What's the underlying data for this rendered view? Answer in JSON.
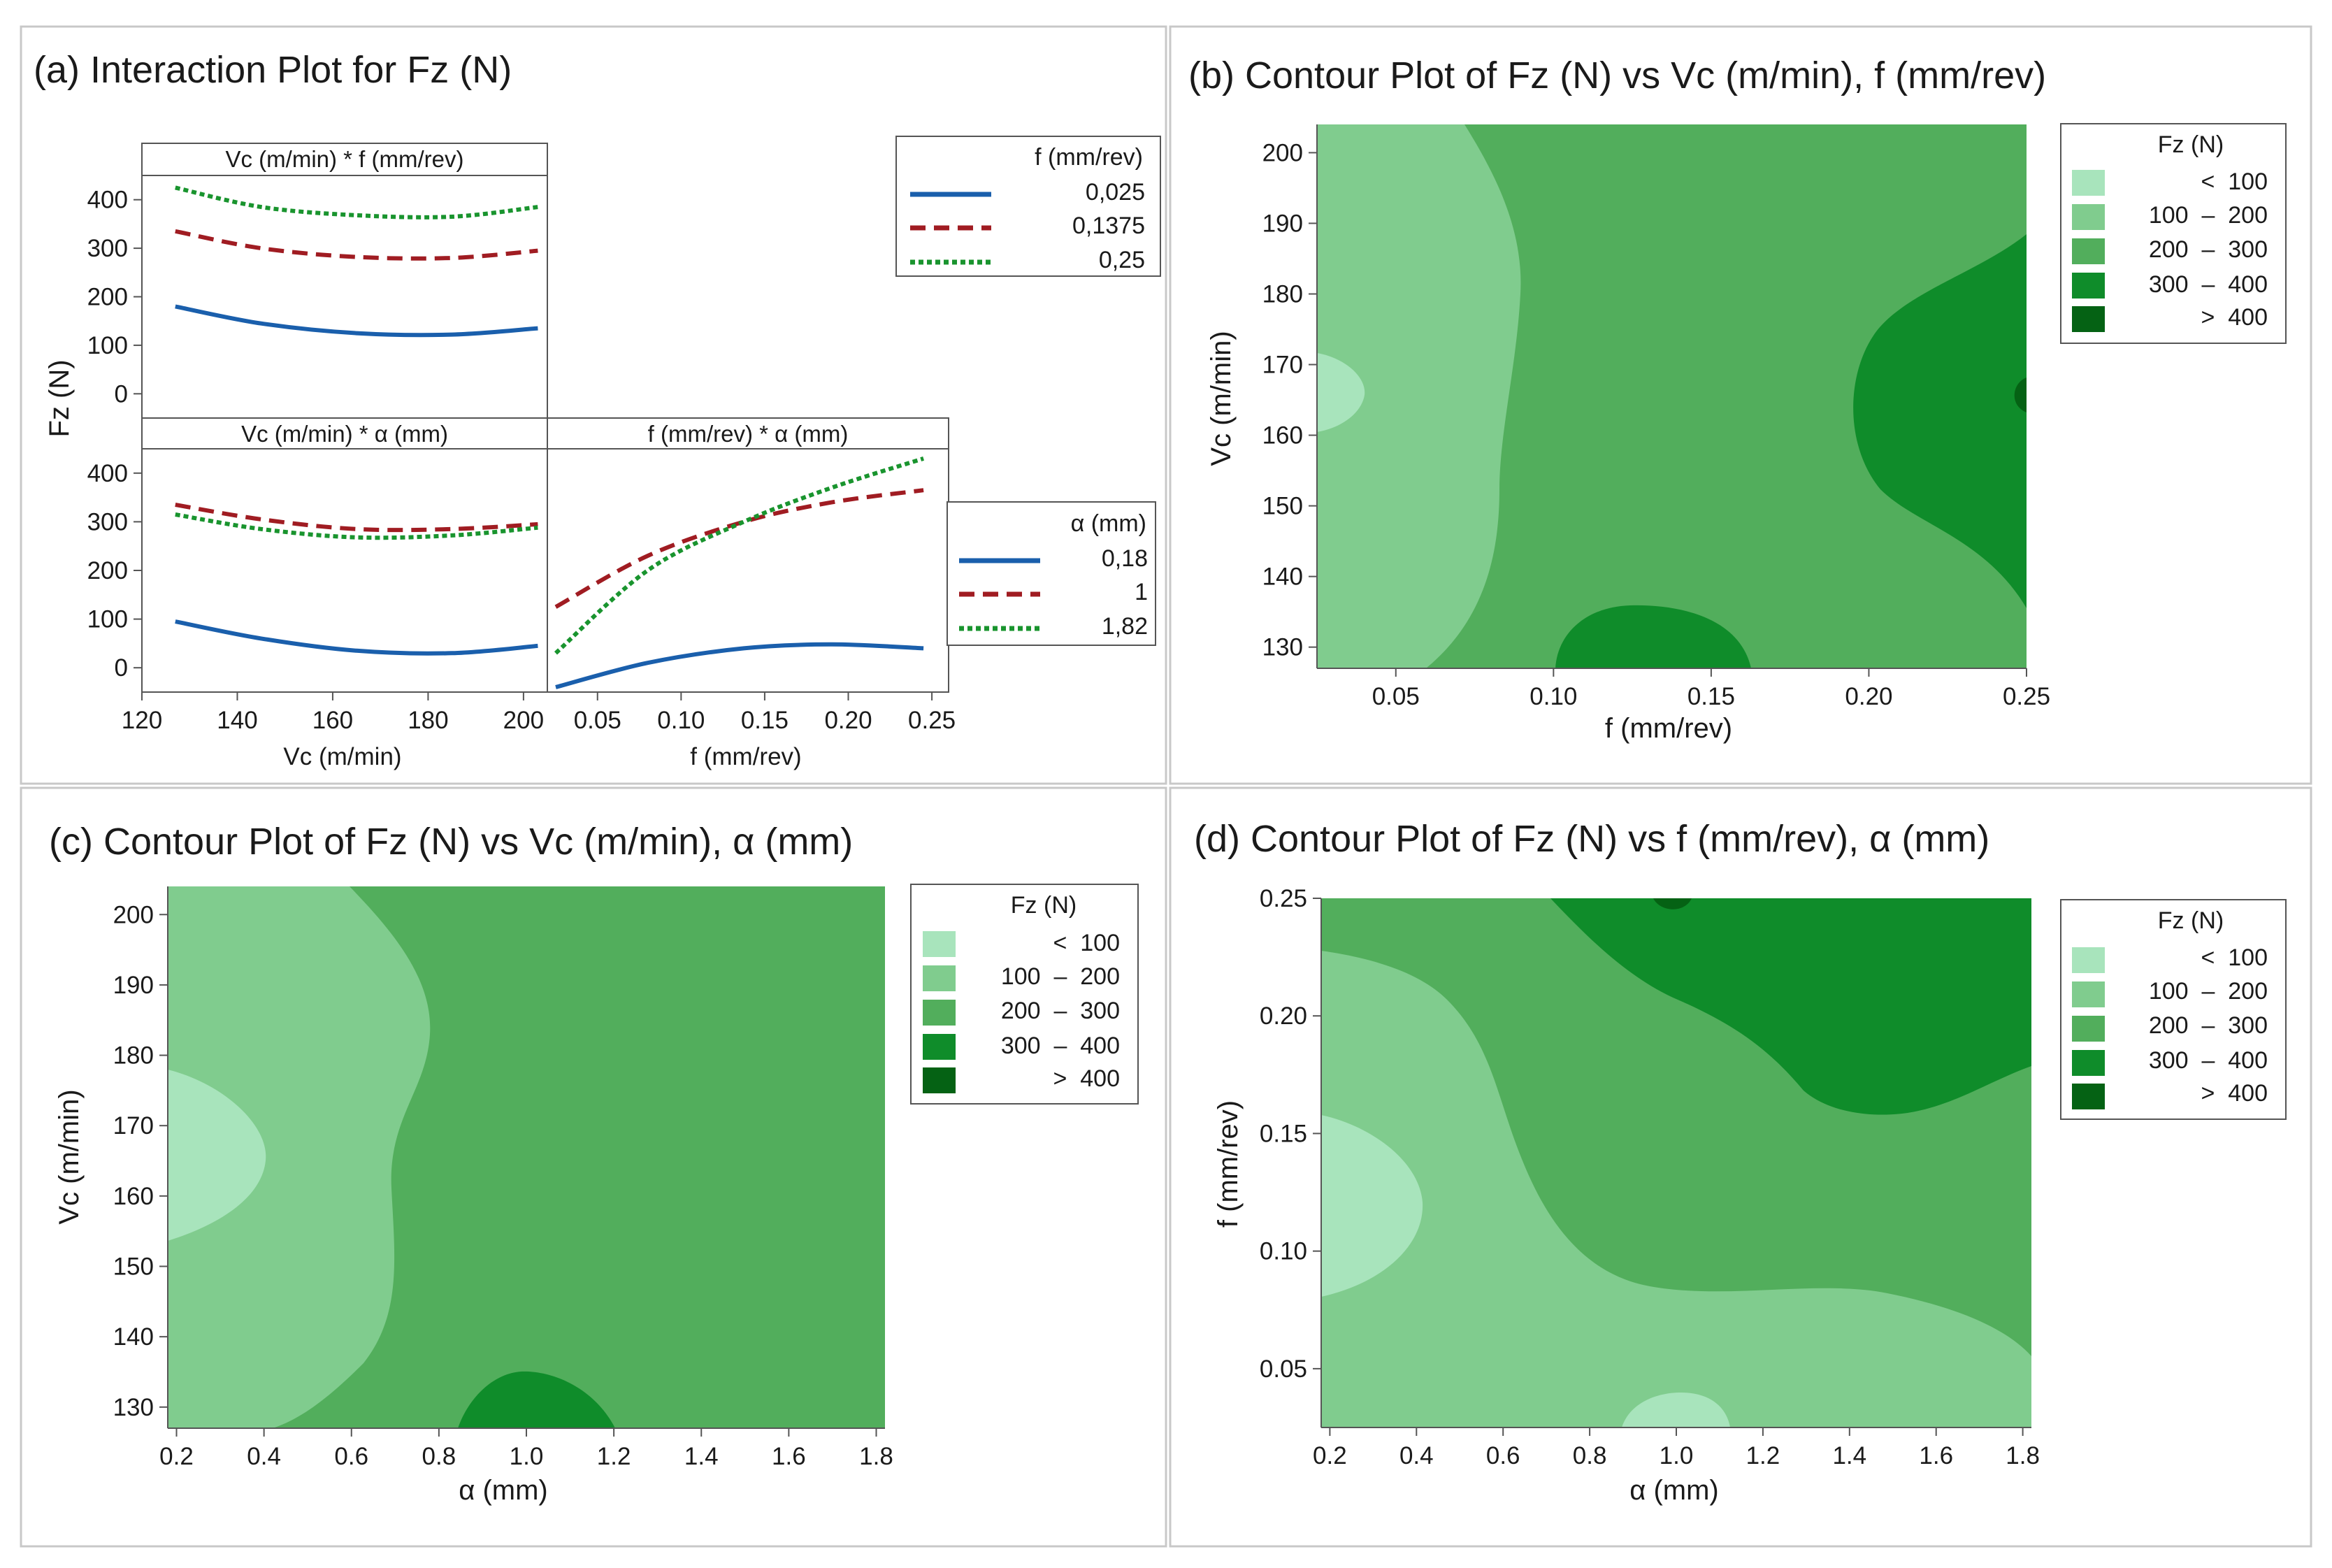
{
  "colors": {
    "band_lt100": "#a8e4bc",
    "band_100_200": "#80cc8e",
    "band_200_300": "#52ae5c",
    "band_300_400": "#0f8c2a",
    "band_gt400": "#056214",
    "f_0025": "#1a5fac",
    "f_01375": "#a01c22",
    "f_025": "#19942e"
  },
  "chart_data": [
    {
      "id": "a",
      "type": "line",
      "title": "(a) Interaction Plot for Fz (N)",
      "ylabel": "Fz (N)",
      "ylim": [
        -50,
        450
      ],
      "yticks": [
        0,
        100,
        200,
        300,
        400
      ],
      "panels": [
        {
          "strip": "Vc (m/min) * f (mm/rev)",
          "xlabel": "Vc (m/min)",
          "xlim": [
            120,
            205
          ],
          "xticks": [
            120,
            140,
            160,
            180,
            200
          ],
          "x": [
            127,
            145,
            165,
            185,
            203
          ],
          "legend_group": "f",
          "series": [
            {
              "name": "0,025",
              "values": [
                180,
                145,
                125,
                122,
                135
              ]
            },
            {
              "name": "0,1375",
              "values": [
                335,
                300,
                282,
                280,
                295
              ]
            },
            {
              "name": "0,25",
              "values": [
                425,
                385,
                368,
                365,
                385
              ]
            }
          ]
        },
        {
          "strip": "Vc (m/min) * α (mm)",
          "xlabel": "Vc (m/min)",
          "xlim": [
            120,
            205
          ],
          "xticks": [
            120,
            140,
            160,
            180,
            200
          ],
          "x": [
            127,
            145,
            165,
            185,
            203
          ],
          "legend_group": "alpha",
          "series": [
            {
              "name": "0,18",
              "values": [
                95,
                60,
                35,
                30,
                45
              ]
            },
            {
              "name": "1",
              "values": [
                335,
                305,
                285,
                285,
                295
              ]
            },
            {
              "name": "1,82",
              "values": [
                315,
                285,
                268,
                272,
                288
              ]
            }
          ]
        },
        {
          "strip": "f (mm/rev) * α (mm)",
          "xlabel": "f (mm/rev)",
          "xlim": [
            0.02,
            0.26
          ],
          "xticks": [
            0.05,
            0.1,
            0.15,
            0.2,
            0.25
          ],
          "xtick_labels": [
            "0.05",
            "0.10",
            "0.15",
            "0.20",
            "0.25"
          ],
          "x": [
            0.025,
            0.08,
            0.1375,
            0.19,
            0.245
          ],
          "legend_group": "alpha",
          "series": [
            {
              "name": "0,18",
              "values": [
                -40,
                10,
                40,
                48,
                40
              ]
            },
            {
              "name": "1",
              "values": [
                125,
                230,
                300,
                340,
                365
              ]
            },
            {
              "name": "1,82",
              "values": [
                30,
                200,
                300,
                370,
                430
              ]
            }
          ]
        }
      ],
      "legends": {
        "f": {
          "title": "f (mm/rev)",
          "items": [
            "0,025",
            "0,1375",
            "0,25"
          ]
        },
        "alpha": {
          "title": "α (mm)",
          "items": [
            "0,18",
            "1",
            "1,82"
          ]
        }
      }
    },
    {
      "id": "b",
      "type": "contour",
      "title": "(b) Contour Plot of Fz (N) vs Vc (m/min), f (mm/rev)",
      "xlabel": "f (mm/rev)",
      "ylabel": "Vc (m/min)",
      "xlim": [
        0.025,
        0.25
      ],
      "ylim": [
        127,
        204
      ],
      "xticks": [
        0.05,
        0.1,
        0.15,
        0.2,
        0.25
      ],
      "xtick_labels": [
        "0.05",
        "0.10",
        "0.15",
        "0.20",
        "0.25"
      ],
      "yticks": [
        130,
        140,
        150,
        160,
        170,
        180,
        190,
        200
      ],
      "legend": {
        "title": "Fz (N)",
        "bands": [
          "<  100",
          "100  –  200",
          "200  –  300",
          "300  –  400",
          ">  400"
        ]
      }
    },
    {
      "id": "c",
      "type": "contour",
      "title": "(c) Contour Plot of Fz (N) vs Vc (m/min), α (mm)",
      "xlabel": "α (mm)",
      "ylabel": "Vc (m/min)",
      "xlim": [
        0.18,
        1.82
      ],
      "ylim": [
        127,
        204
      ],
      "xticks": [
        0.2,
        0.4,
        0.6,
        0.8,
        1.0,
        1.2,
        1.4,
        1.6,
        1.8
      ],
      "xtick_labels": [
        "0.2",
        "0.4",
        "0.6",
        "0.8",
        "1.0",
        "1.2",
        "1.4",
        "1.6",
        "1.8"
      ],
      "yticks": [
        130,
        140,
        150,
        160,
        170,
        180,
        190,
        200
      ],
      "legend": {
        "title": "Fz (N)",
        "bands": [
          "<  100",
          "100  –  200",
          "200  –  300",
          "300  –  400",
          ">  400"
        ]
      }
    },
    {
      "id": "d",
      "type": "contour",
      "title": "(d) Contour Plot of Fz (N) vs f (mm/rev), α (mm)",
      "xlabel": "α (mm)",
      "ylabel": "f (mm/rev)",
      "xlim": [
        0.18,
        1.82
      ],
      "ylim": [
        0.025,
        0.25
      ],
      "xticks": [
        0.2,
        0.4,
        0.6,
        0.8,
        1.0,
        1.2,
        1.4,
        1.6,
        1.8
      ],
      "xtick_labels": [
        "0.2",
        "0.4",
        "0.6",
        "0.8",
        "1.0",
        "1.2",
        "1.4",
        "1.6",
        "1.8"
      ],
      "yticks": [
        0.05,
        0.1,
        0.15,
        0.2,
        0.25
      ],
      "ytick_labels": [
        "0.05",
        "0.10",
        "0.15",
        "0.20",
        "0.25"
      ],
      "legend": {
        "title": "Fz (N)",
        "bands": [
          "<  100",
          "100  –  200",
          "200  –  300",
          "300  –  400",
          ">  400"
        ]
      }
    }
  ]
}
